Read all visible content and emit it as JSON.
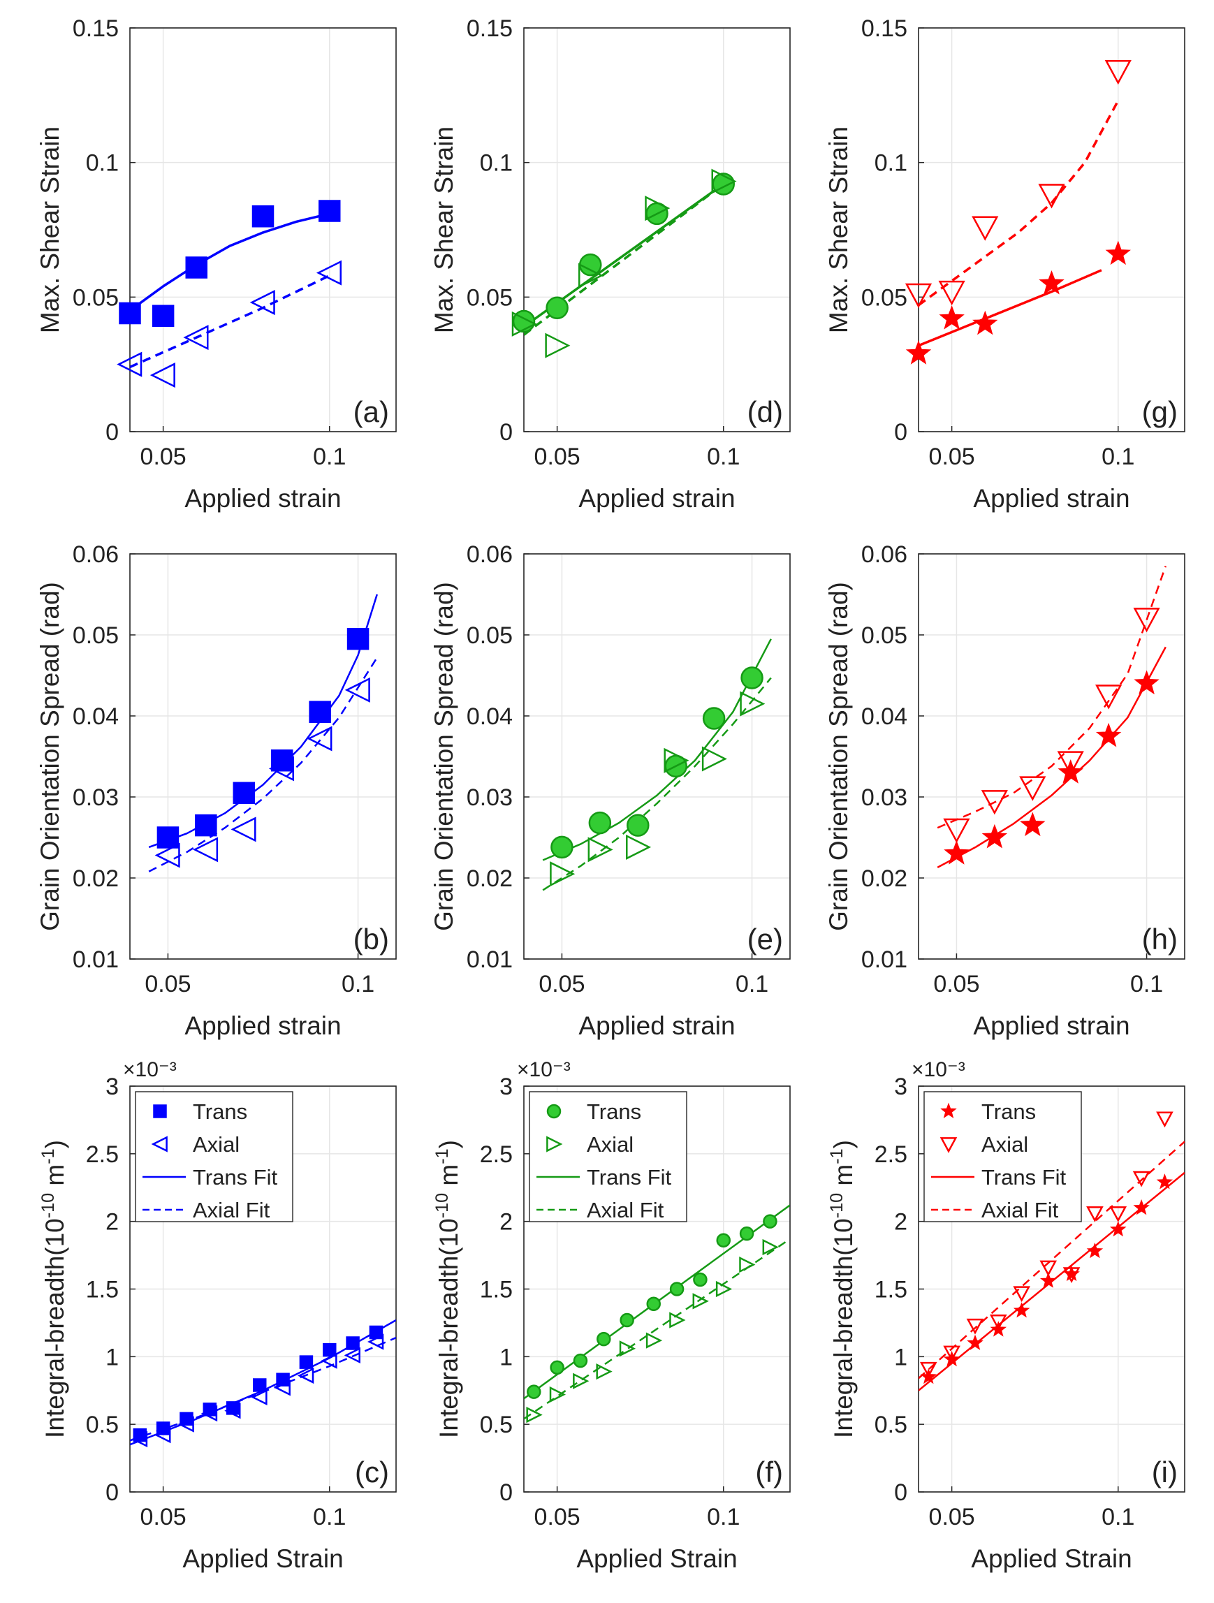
{
  "figure": {
    "panel_count": 9
  },
  "chart_data": [
    {
      "id": "a",
      "type": "scatter",
      "panel_label": "(a)",
      "xlabel": "Applied strain",
      "ylabel": "Max. Shear Strain",
      "xlim": [
        0.04,
        0.12
      ],
      "ylim": [
        0,
        0.15
      ],
      "xticks": [
        "0.05",
        "0.1"
      ],
      "yticks": [
        "0",
        "0.05",
        "0.1",
        "0.15"
      ],
      "xtick_values": [
        0.05,
        0.1
      ],
      "ytick_values": [
        0,
        0.05,
        0.1,
        0.15
      ],
      "grid": true,
      "color": "#0000ff",
      "series": [
        {
          "role": "trans",
          "marker": "square",
          "x": [
            0.04,
            0.05,
            0.06,
            0.08,
            0.1
          ],
          "y": [
            0.044,
            0.043,
            0.061,
            0.08,
            0.082
          ]
        },
        {
          "role": "axial",
          "marker": "triangle-left",
          "x": [
            0.04,
            0.05,
            0.06,
            0.08,
            0.1
          ],
          "y": [
            0.025,
            0.021,
            0.035,
            0.048,
            0.059
          ]
        },
        {
          "role": "trans-fit",
          "line": "solid",
          "x": [
            0.04,
            0.05,
            0.06,
            0.07,
            0.08,
            0.09,
            0.1
          ],
          "y": [
            0.045,
            0.054,
            0.062,
            0.069,
            0.074,
            0.078,
            0.081
          ]
        },
        {
          "role": "axial-fit",
          "line": "dashed",
          "x": [
            0.04,
            0.06,
            0.08,
            0.1
          ],
          "y": [
            0.024,
            0.035,
            0.046,
            0.058
          ]
        }
      ]
    },
    {
      "id": "d",
      "type": "scatter",
      "panel_label": "(d)",
      "xlabel": "Applied strain",
      "ylabel": "Max. Shear Strain",
      "xlim": [
        0.04,
        0.12
      ],
      "ylim": [
        0,
        0.15
      ],
      "xticks": [
        "0.05",
        "0.1"
      ],
      "yticks": [
        "0",
        "0.05",
        "0.1",
        "0.15"
      ],
      "xtick_values": [
        0.05,
        0.1
      ],
      "ytick_values": [
        0,
        0.05,
        0.1,
        0.15
      ],
      "grid": true,
      "color": "#159a15",
      "fill": "#33cc33",
      "series": [
        {
          "role": "trans",
          "marker": "circle",
          "x": [
            0.04,
            0.05,
            0.06,
            0.08,
            0.1
          ],
          "y": [
            0.041,
            0.046,
            0.062,
            0.081,
            0.092
          ]
        },
        {
          "role": "axial",
          "marker": "triangle-right",
          "x": [
            0.04,
            0.05,
            0.06,
            0.08,
            0.1
          ],
          "y": [
            0.04,
            0.032,
            0.058,
            0.083,
            0.093
          ]
        },
        {
          "role": "trans-fit",
          "line": "solid",
          "x": [
            0.04,
            0.1
          ],
          "y": [
            0.039,
            0.092
          ]
        },
        {
          "role": "axial-fit",
          "line": "dashed",
          "x": [
            0.04,
            0.1
          ],
          "y": [
            0.036,
            0.092
          ]
        }
      ]
    },
    {
      "id": "g",
      "type": "scatter",
      "panel_label": "(g)",
      "xlabel": "Applied strain",
      "ylabel": "Max. Shear Strain",
      "xlim": [
        0.04,
        0.12
      ],
      "ylim": [
        0,
        0.15
      ],
      "xticks": [
        "0.05",
        "0.1"
      ],
      "yticks": [
        "0",
        "0.05",
        "0.1",
        "0.15"
      ],
      "xtick_values": [
        0.05,
        0.1
      ],
      "ytick_values": [
        0,
        0.05,
        0.1,
        0.15
      ],
      "grid": true,
      "color": "#ff0000",
      "series": [
        {
          "role": "trans",
          "marker": "star",
          "x": [
            0.04,
            0.05,
            0.06,
            0.08,
            0.1
          ],
          "y": [
            0.029,
            0.042,
            0.04,
            0.055,
            0.066
          ]
        },
        {
          "role": "axial",
          "marker": "triangle-down",
          "x": [
            0.04,
            0.05,
            0.06,
            0.08,
            0.1
          ],
          "y": [
            0.051,
            0.052,
            0.076,
            0.088,
            0.134
          ]
        },
        {
          "role": "trans-fit",
          "line": "solid",
          "x": [
            0.04,
            0.06,
            0.08,
            0.095
          ],
          "y": [
            0.032,
            0.042,
            0.052,
            0.06
          ]
        },
        {
          "role": "axial-fit",
          "line": "dashed",
          "x": [
            0.04,
            0.05,
            0.06,
            0.07,
            0.08,
            0.09,
            0.1
          ],
          "y": [
            0.047,
            0.056,
            0.065,
            0.074,
            0.085,
            0.1,
            0.123
          ]
        }
      ]
    },
    {
      "id": "b",
      "type": "scatter",
      "panel_label": "(b)",
      "xlabel": "Applied strain",
      "ylabel": "Grain Orientation Spread (rad)",
      "xlim": [
        0.04,
        0.11
      ],
      "ylim": [
        0.01,
        0.06
      ],
      "xticks": [
        "0.05",
        "0.1"
      ],
      "yticks": [
        "0.01",
        "0.02",
        "0.03",
        "0.04",
        "0.05",
        "0.06"
      ],
      "xtick_values": [
        0.05,
        0.1
      ],
      "ytick_values": [
        0.01,
        0.02,
        0.03,
        0.04,
        0.05,
        0.06
      ],
      "grid": true,
      "color": "#0000ff",
      "series": [
        {
          "role": "trans",
          "marker": "square",
          "x": [
            0.05,
            0.06,
            0.07,
            0.08,
            0.09,
            0.1
          ],
          "y": [
            0.025,
            0.0265,
            0.0305,
            0.0345,
            0.0405,
            0.0495
          ]
        },
        {
          "role": "axial",
          "marker": "triangle-left",
          "x": [
            0.05,
            0.06,
            0.07,
            0.08,
            0.09,
            0.1
          ],
          "y": [
            0.0228,
            0.0235,
            0.026,
            0.0335,
            0.0372,
            0.0432
          ]
        },
        {
          "role": "trans-fit",
          "line": "solid",
          "x": [
            0.045,
            0.055,
            0.065,
            0.075,
            0.085,
            0.095,
            0.1,
            0.105
          ],
          "y": [
            0.0238,
            0.0255,
            0.028,
            0.0315,
            0.0362,
            0.0425,
            0.0475,
            0.055
          ]
        },
        {
          "role": "axial-fit",
          "line": "dashed",
          "x": [
            0.045,
            0.055,
            0.065,
            0.075,
            0.085,
            0.095,
            0.105
          ],
          "y": [
            0.0208,
            0.0232,
            0.0262,
            0.0298,
            0.0342,
            0.0398,
            0.0472
          ]
        }
      ]
    },
    {
      "id": "e",
      "type": "scatter",
      "panel_label": "(e)",
      "xlabel": "Applied strain",
      "ylabel": "Grain Orientation Spread (rad)",
      "xlim": [
        0.04,
        0.11
      ],
      "ylim": [
        0.01,
        0.06
      ],
      "xticks": [
        "0.05",
        "0.1"
      ],
      "yticks": [
        "0.01",
        "0.02",
        "0.03",
        "0.04",
        "0.05",
        "0.06"
      ],
      "xtick_values": [
        0.05,
        0.1
      ],
      "ytick_values": [
        0.01,
        0.02,
        0.03,
        0.04,
        0.05,
        0.06
      ],
      "grid": true,
      "color": "#159a15",
      "fill": "#33cc33",
      "series": [
        {
          "role": "trans",
          "marker": "circle",
          "x": [
            0.05,
            0.06,
            0.07,
            0.08,
            0.09,
            0.1
          ],
          "y": [
            0.0238,
            0.0268,
            0.0265,
            0.0338,
            0.0397,
            0.0447
          ]
        },
        {
          "role": "axial",
          "marker": "triangle-right",
          "x": [
            0.05,
            0.06,
            0.07,
            0.08,
            0.09,
            0.1
          ],
          "y": [
            0.0205,
            0.0235,
            0.0238,
            0.0345,
            0.0347,
            0.0415
          ]
        },
        {
          "role": "trans-fit",
          "line": "solid",
          "x": [
            0.045,
            0.055,
            0.065,
            0.075,
            0.085,
            0.095,
            0.105
          ],
          "y": [
            0.0222,
            0.0242,
            0.0268,
            0.0302,
            0.0345,
            0.0405,
            0.0495
          ]
        },
        {
          "role": "axial-fit",
          "line": "dashed",
          "x": [
            0.045,
            0.055,
            0.065,
            0.075,
            0.085,
            0.095,
            0.105
          ],
          "y": [
            0.0185,
            0.0215,
            0.025,
            0.0292,
            0.0338,
            0.039,
            0.0447
          ]
        }
      ]
    },
    {
      "id": "h",
      "type": "scatter",
      "panel_label": "(h)",
      "xlabel": "Applied strain",
      "ylabel": "Grain Orientation Spread (rad)",
      "xlim": [
        0.04,
        0.11
      ],
      "ylim": [
        0.01,
        0.06
      ],
      "xticks": [
        "0.05",
        "0.1"
      ],
      "yticks": [
        "0.01",
        "0.02",
        "0.03",
        "0.04",
        "0.05",
        "0.06"
      ],
      "xtick_values": [
        0.05,
        0.1
      ],
      "ytick_values": [
        0.01,
        0.02,
        0.03,
        0.04,
        0.05,
        0.06
      ],
      "grid": true,
      "color": "#ff0000",
      "series": [
        {
          "role": "trans",
          "marker": "star",
          "x": [
            0.05,
            0.06,
            0.07,
            0.08,
            0.09,
            0.1
          ],
          "y": [
            0.023,
            0.025,
            0.0265,
            0.033,
            0.0375,
            0.044
          ]
        },
        {
          "role": "axial",
          "marker": "triangle-down",
          "x": [
            0.05,
            0.06,
            0.07,
            0.08,
            0.09,
            0.1
          ],
          "y": [
            0.026,
            0.0295,
            0.0312,
            0.0343,
            0.0425,
            0.052
          ]
        },
        {
          "role": "trans-fit",
          "line": "solid",
          "x": [
            0.045,
            0.055,
            0.065,
            0.075,
            0.085,
            0.095,
            0.105
          ],
          "y": [
            0.0213,
            0.0238,
            0.0267,
            0.0302,
            0.0345,
            0.0398,
            0.0485
          ]
        },
        {
          "role": "axial-fit",
          "line": "dashed",
          "x": [
            0.045,
            0.055,
            0.065,
            0.075,
            0.085,
            0.095,
            0.105
          ],
          "y": [
            0.0262,
            0.0282,
            0.0305,
            0.0338,
            0.0385,
            0.0452,
            0.0585
          ]
        }
      ]
    },
    {
      "id": "c",
      "type": "scatter",
      "panel_label": "(c)",
      "xlabel": "Applied Strain",
      "ylabel": "Integral-breadth(10^{-10} m^{-1})",
      "xlim": [
        0.04,
        0.12
      ],
      "ylim": [
        0,
        3
      ],
      "xticks": [
        "0.05",
        "0.1"
      ],
      "yticks": [
        "0",
        "0.5",
        "1",
        "1.5",
        "2",
        "2.5",
        "3"
      ],
      "xtick_values": [
        0.05,
        0.1
      ],
      "ytick_values": [
        0,
        0.5,
        1,
        1.5,
        2,
        2.5,
        3
      ],
      "y_exponent_label": "×10⁻³",
      "grid": true,
      "color": "#0000ff",
      "legend": {
        "position": "top-left",
        "entries": [
          "Trans",
          "Axial",
          "Trans Fit",
          "Axial Fit"
        ]
      },
      "series": [
        {
          "name": "Trans",
          "marker": "square",
          "x": [
            0.043,
            0.05,
            0.057,
            0.064,
            0.071,
            0.079,
            0.086,
            0.093,
            0.1,
            0.107,
            0.114
          ],
          "y": [
            0.42,
            0.47,
            0.54,
            0.61,
            0.62,
            0.79,
            0.83,
            0.96,
            1.05,
            1.1,
            1.18
          ]
        },
        {
          "name": "Axial",
          "marker": "triangle-left",
          "x": [
            0.043,
            0.05,
            0.057,
            0.064,
            0.071,
            0.079,
            0.086,
            0.093,
            0.1,
            0.107,
            0.114
          ],
          "y": [
            0.39,
            0.42,
            0.5,
            0.58,
            0.6,
            0.7,
            0.77,
            0.86,
            0.97,
            1.01,
            1.11
          ]
        },
        {
          "name": "Trans Fit",
          "line": "solid",
          "x": [
            0.04,
            0.06,
            0.08,
            0.1,
            0.12
          ],
          "y": [
            0.35,
            0.54,
            0.75,
            0.99,
            1.27
          ]
        },
        {
          "name": "Axial Fit",
          "line": "dashed",
          "x": [
            0.04,
            0.06,
            0.08,
            0.1,
            0.12
          ],
          "y": [
            0.38,
            0.55,
            0.74,
            0.93,
            1.14
          ]
        }
      ]
    },
    {
      "id": "f",
      "type": "scatter",
      "panel_label": "(f)",
      "xlabel": "Applied Strain",
      "ylabel": "Integral-breadth(10^{-10} m^{-1})",
      "xlim": [
        0.04,
        0.12
      ],
      "ylim": [
        0,
        3
      ],
      "xticks": [
        "0.05",
        "0.1"
      ],
      "yticks": [
        "0",
        "0.5",
        "1",
        "1.5",
        "2",
        "2.5",
        "3"
      ],
      "xtick_values": [
        0.05,
        0.1
      ],
      "ytick_values": [
        0,
        0.5,
        1,
        1.5,
        2,
        2.5,
        3
      ],
      "y_exponent_label": "×10⁻³",
      "grid": true,
      "color": "#159a15",
      "fill": "#33cc33",
      "legend": {
        "position": "top-left",
        "entries": [
          "Trans",
          "Axial",
          "Trans Fit",
          "Axial Fit"
        ]
      },
      "series": [
        {
          "name": "Trans",
          "marker": "circle",
          "x": [
            0.043,
            0.05,
            0.057,
            0.064,
            0.071,
            0.079,
            0.086,
            0.093,
            0.1,
            0.107,
            0.114
          ],
          "y": [
            0.74,
            0.92,
            0.97,
            1.13,
            1.27,
            1.39,
            1.5,
            1.57,
            1.86,
            1.91,
            2.0
          ]
        },
        {
          "name": "Axial",
          "marker": "triangle-right",
          "x": [
            0.043,
            0.05,
            0.057,
            0.064,
            0.071,
            0.079,
            0.086,
            0.093,
            0.1,
            0.107,
            0.114
          ],
          "y": [
            0.57,
            0.72,
            0.82,
            0.89,
            1.06,
            1.12,
            1.27,
            1.41,
            1.5,
            1.68,
            1.81
          ]
        },
        {
          "name": "Trans Fit",
          "line": "solid",
          "x": [
            0.04,
            0.12
          ],
          "y": [
            0.69,
            2.12
          ]
        },
        {
          "name": "Axial Fit",
          "line": "dashed",
          "x": [
            0.04,
            0.12
          ],
          "y": [
            0.54,
            1.87
          ]
        }
      ]
    },
    {
      "id": "i",
      "type": "scatter",
      "panel_label": "(i)",
      "xlabel": "Applied Strain",
      "ylabel": "Integral-breadth(10^{-10} m^{-1})",
      "xlim": [
        0.04,
        0.12
      ],
      "ylim": [
        0,
        3
      ],
      "xticks": [
        "0.05",
        "0.1"
      ],
      "yticks": [
        "0",
        "0.5",
        "1",
        "1.5",
        "2",
        "2.5",
        "3"
      ],
      "xtick_values": [
        0.05,
        0.1
      ],
      "ytick_values": [
        0,
        0.5,
        1,
        1.5,
        2,
        2.5,
        3
      ],
      "y_exponent_label": "×10⁻³",
      "grid": true,
      "color": "#ff0000",
      "legend": {
        "position": "top-left",
        "entries": [
          "Trans",
          "Axial",
          "Trans Fit",
          "Axial Fit"
        ]
      },
      "series": [
        {
          "name": "Trans",
          "marker": "star",
          "x": [
            0.043,
            0.05,
            0.057,
            0.064,
            0.071,
            0.079,
            0.086,
            0.093,
            0.1,
            0.107,
            0.114
          ],
          "y": [
            0.85,
            0.98,
            1.1,
            1.2,
            1.34,
            1.56,
            1.61,
            1.78,
            1.94,
            2.1,
            2.29
          ]
        },
        {
          "name": "Axial",
          "marker": "triangle-down",
          "x": [
            0.043,
            0.05,
            0.057,
            0.064,
            0.071,
            0.079,
            0.086,
            0.093,
            0.1,
            0.107,
            0.114
          ],
          "y": [
            0.91,
            1.03,
            1.23,
            1.26,
            1.47,
            1.66,
            1.61,
            2.06,
            2.06,
            2.32,
            2.76
          ]
        },
        {
          "name": "Trans Fit",
          "line": "solid",
          "x": [
            0.04,
            0.12
          ],
          "y": [
            0.75,
            2.36
          ]
        },
        {
          "name": "Axial Fit",
          "line": "dashed",
          "x": [
            0.04,
            0.12
          ],
          "y": [
            0.84,
            2.59
          ]
        }
      ]
    }
  ]
}
